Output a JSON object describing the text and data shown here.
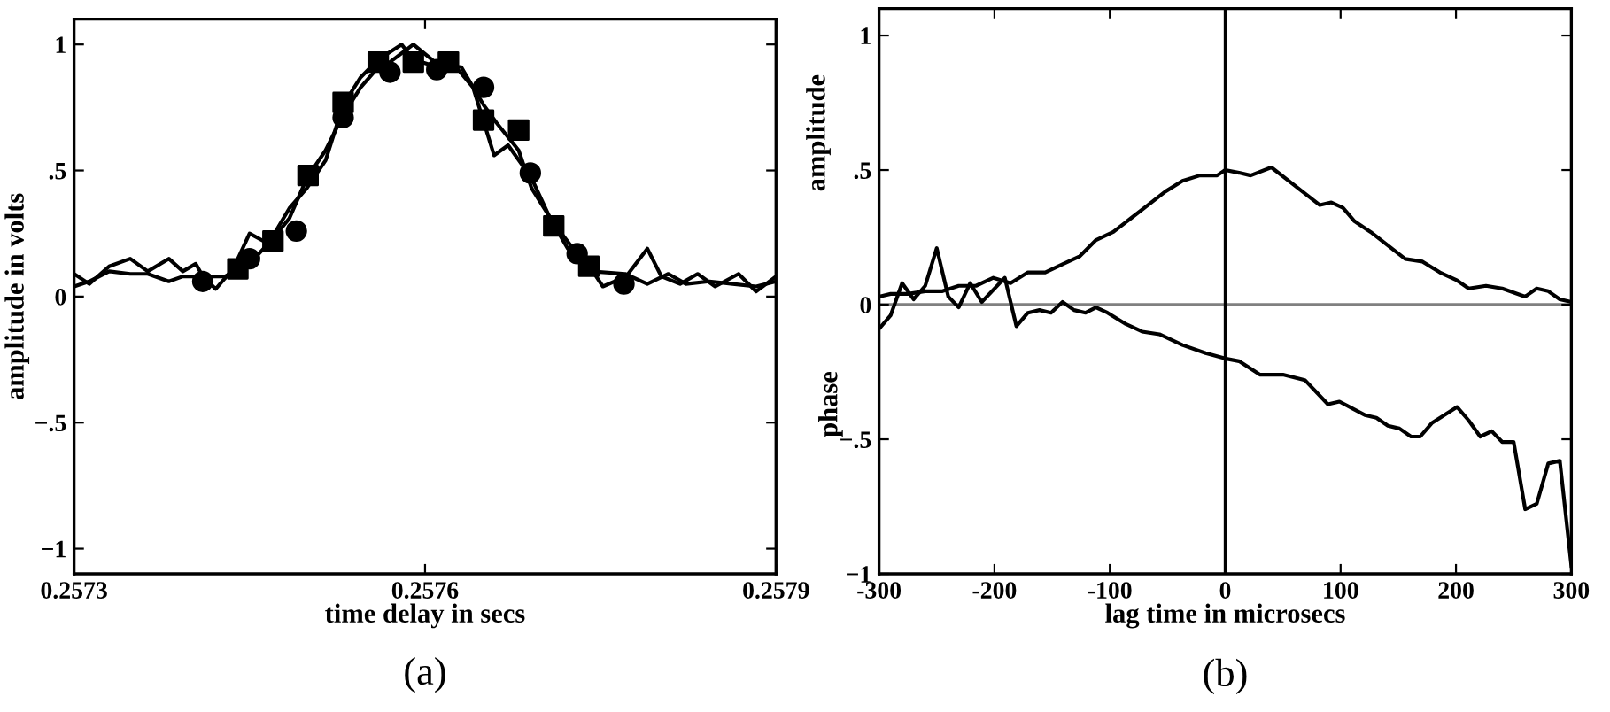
{
  "chart_data": [
    {
      "type": "line",
      "xlabel": "time delay in secs",
      "ylabel": "amplitude in volts",
      "annotations": [
        "(a)"
      ],
      "xlim": [
        0.2573,
        0.2579
      ],
      "ylim": [
        -1.1,
        1.1
      ],
      "xticks": [
        0.2573,
        0.2576,
        0.2579
      ],
      "yticks": [
        {
          "value": -1,
          "label": "−1"
        },
        {
          "value": -0.5,
          "label": "−.5"
        },
        0,
        {
          "value": 0.5,
          "label": ".5"
        },
        1
      ],
      "grid": false,
      "legend": false,
      "series": [
        {
          "type": "line",
          "color": "#000000",
          "marker": "none",
          "line_style": "solid",
          "x": [
            0.2573,
            0.257313,
            0.25733,
            0.257348,
            0.257363,
            0.257381,
            0.257393,
            0.257404,
            0.25741,
            0.257421,
            0.257436,
            0.25745,
            0.257462,
            0.25747,
            0.257484,
            0.257499,
            0.257515,
            0.25753,
            0.257545,
            0.25756,
            0.25758,
            0.25759,
            0.257611,
            0.257621,
            0.257641,
            0.257659,
            0.257671,
            0.257691,
            0.257707,
            0.257722,
            0.257742,
            0.257752,
            0.257772,
            0.25779,
            0.257802,
            0.257818,
            0.257833,
            0.257848,
            0.257868,
            0.257883,
            0.2579
          ],
          "values": [
            0.09,
            0.05,
            0.12,
            0.15,
            0.1,
            0.15,
            0.1,
            0.13,
            0.08,
            0.03,
            0.11,
            0.25,
            0.22,
            0.24,
            0.35,
            0.43,
            0.54,
            0.76,
            0.87,
            0.94,
            1.0,
            0.94,
            0.91,
            0.94,
            0.83,
            0.56,
            0.6,
            0.47,
            0.31,
            0.19,
            0.11,
            0.04,
            0.08,
            0.19,
            0.08,
            0.05,
            0.09,
            0.04,
            0.09,
            0.02,
            0.08
          ]
        },
        {
          "type": "line",
          "color": "#000000",
          "marker": "none",
          "line_style": "solid",
          "x": [
            0.2573,
            0.257313,
            0.25733,
            0.257348,
            0.257363,
            0.257381,
            0.257393,
            0.25741,
            0.257429,
            0.25745,
            0.25747,
            0.257484,
            0.257499,
            0.257515,
            0.25753,
            0.257545,
            0.25756,
            0.25757,
            0.25759,
            0.257611,
            0.257631,
            0.25765,
            0.257661,
            0.25768,
            0.257691,
            0.25771,
            0.25773,
            0.257742,
            0.257771,
            0.25779,
            0.257808,
            0.257823,
            0.257843,
            0.257863,
            0.257883,
            0.2579
          ],
          "values": [
            0.04,
            0.06,
            0.1,
            0.09,
            0.09,
            0.06,
            0.08,
            0.08,
            0.08,
            0.13,
            0.23,
            0.31,
            0.47,
            0.58,
            0.72,
            0.83,
            0.91,
            0.93,
            1.0,
            0.92,
            0.91,
            0.76,
            0.69,
            0.58,
            0.43,
            0.29,
            0.17,
            0.1,
            0.09,
            0.05,
            0.09,
            0.05,
            0.06,
            0.05,
            0.04,
            0.06
          ]
        },
        {
          "type": "scatter",
          "color": "#000000",
          "marker": "circle",
          "x": [
            0.25741,
            0.25745,
            0.25749,
            0.25753,
            0.25757,
            0.25761,
            0.25765,
            0.25769,
            0.25773,
            0.25777
          ],
          "values": [
            0.06,
            0.15,
            0.26,
            0.71,
            0.89,
            0.9,
            0.83,
            0.49,
            0.17,
            0.05
          ]
        },
        {
          "type": "scatter",
          "color": "#000000",
          "marker": "square",
          "x": [
            0.25744,
            0.25747,
            0.2575,
            0.25753,
            0.25756,
            0.25759,
            0.25762,
            0.25765,
            0.25768,
            0.25771,
            0.25774
          ],
          "values": [
            0.11,
            0.22,
            0.48,
            0.77,
            0.93,
            0.93,
            0.93,
            0.7,
            0.66,
            0.28,
            0.12
          ]
        }
      ]
    },
    {
      "type": "line",
      "xlabel": "lag time in microsecs",
      "ylabel": "amplitude",
      "annotations": [
        "phase",
        "(b)"
      ],
      "xlim": [
        -300,
        300
      ],
      "ylim": [
        -1,
        1.1
      ],
      "xticks": [
        -300,
        -200,
        -100,
        0,
        100,
        200,
        300
      ],
      "yticks": [
        {
          "value": -1,
          "label": "−1"
        },
        {
          "value": -0.5,
          "label": "−.5"
        },
        0,
        {
          "value": 0.5,
          "label": ".5"
        },
        1
      ],
      "grid": false,
      "legend": false,
      "ref_lines": [
        {
          "axis": "y",
          "value": 0,
          "color": "#808080"
        },
        {
          "axis": "x",
          "value": 0,
          "color": "#000000"
        }
      ],
      "series": [
        {
          "type": "line",
          "color": "#000000",
          "marker": "none",
          "line_style": "solid",
          "x": [
            -300,
            -290,
            -275,
            -260,
            -245,
            -231,
            -216,
            -201,
            -186,
            -171,
            -156,
            -141,
            -126,
            -112,
            -97,
            -82,
            -67,
            -52,
            -37,
            -22,
            -7,
            0,
            12,
            22,
            40,
            52,
            67,
            82,
            92,
            102,
            112,
            126,
            141,
            156,
            171,
            186,
            201,
            211,
            226,
            240,
            260,
            270,
            280,
            290,
            300
          ],
          "values": [
            0.03,
            0.04,
            0.04,
            0.05,
            0.05,
            0.07,
            0.07,
            0.1,
            0.08,
            0.12,
            0.12,
            0.15,
            0.18,
            0.24,
            0.27,
            0.32,
            0.37,
            0.42,
            0.46,
            0.48,
            0.48,
            0.5,
            0.49,
            0.48,
            0.51,
            0.47,
            0.42,
            0.37,
            0.38,
            0.36,
            0.31,
            0.27,
            0.22,
            0.17,
            0.16,
            0.12,
            0.09,
            0.06,
            0.07,
            0.06,
            0.03,
            0.06,
            0.05,
            0.02,
            0.01
          ]
        },
        {
          "type": "line",
          "color": "#000000",
          "marker": "none",
          "line_style": "solid",
          "x": [
            -300,
            -290,
            -280,
            -270,
            -260,
            -250,
            -240,
            -231,
            -221,
            -211,
            -191,
            -181,
            -171,
            -161,
            -151,
            -141,
            -131,
            -121,
            -112,
            -102,
            -87,
            -72,
            -57,
            -37,
            -17,
            0,
            12,
            30,
            50,
            69,
            89,
            99,
            121,
            131,
            141,
            151,
            161,
            169,
            179,
            201,
            211,
            221,
            231,
            240,
            250,
            260,
            270,
            280,
            290,
            300
          ],
          "values": [
            -0.09,
            -0.04,
            0.08,
            0.02,
            0.07,
            0.21,
            0.03,
            -0.01,
            0.08,
            0.01,
            0.1,
            -0.08,
            -0.03,
            -0.02,
            -0.03,
            0.01,
            -0.02,
            -0.03,
            -0.01,
            -0.03,
            -0.07,
            -0.1,
            -0.11,
            -0.15,
            -0.18,
            -0.2,
            -0.21,
            -0.26,
            -0.26,
            -0.28,
            -0.37,
            -0.36,
            -0.41,
            -0.42,
            -0.45,
            -0.46,
            -0.49,
            -0.49,
            -0.44,
            -0.38,
            -0.43,
            -0.49,
            -0.47,
            -0.51,
            -0.51,
            -0.76,
            -0.74,
            -0.59,
            -0.58,
            -0.97
          ]
        }
      ]
    }
  ]
}
